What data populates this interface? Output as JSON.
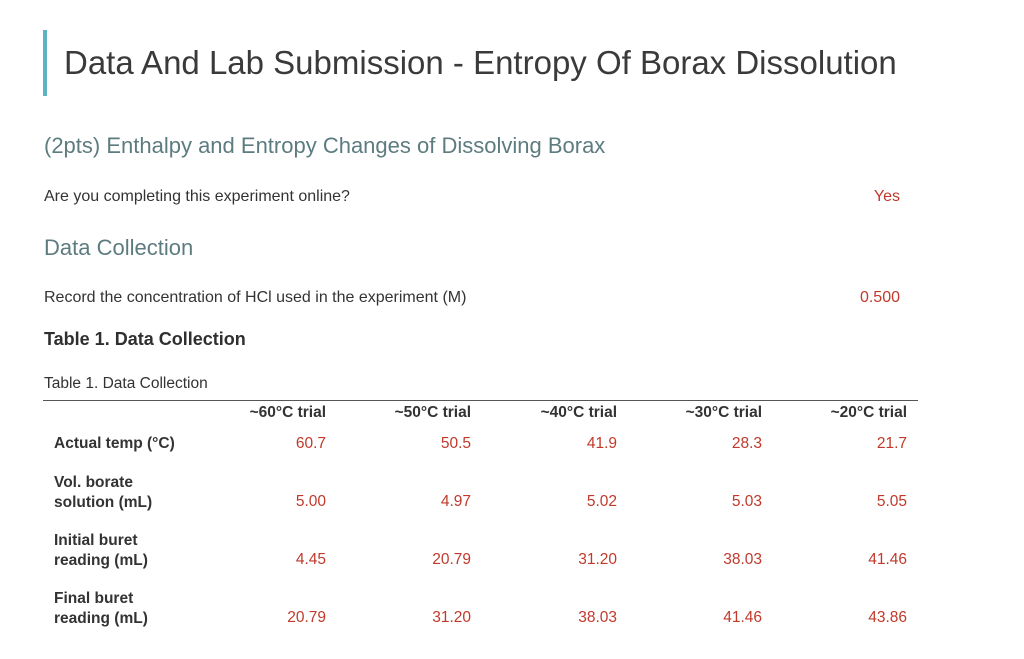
{
  "page": {
    "title": "Data And Lab Submission - Entropy Of Borax Dissolution"
  },
  "section1": {
    "heading": "(2pts) Enthalpy and Entropy Changes of Dissolving Borax",
    "question": "Are you completing this experiment online?",
    "answer": "Yes"
  },
  "section2": {
    "heading": "Data Collection",
    "question": "Record the concentration of HCl used in the experiment (M)",
    "answer": "0.500"
  },
  "table": {
    "heading": "Table 1. Data Collection",
    "caption": "Table 1. Data Collection",
    "columns": [
      "~60°C trial",
      "~50°C trial",
      "~40°C trial",
      "~30°C trial",
      "~20°C trial"
    ],
    "rows": [
      {
        "label": "Actual temp (°C)",
        "values": [
          "60.7",
          "50.5",
          "41.9",
          "28.3",
          "21.7"
        ]
      },
      {
        "label": "Vol. borate solution (mL)",
        "values": [
          "5.00",
          "4.97",
          "5.02",
          "5.03",
          "5.05"
        ]
      },
      {
        "label": "Initial buret reading (mL)",
        "values": [
          "4.45",
          "20.79",
          "31.20",
          "38.03",
          "41.46"
        ]
      },
      {
        "label": "Final buret reading (mL)",
        "values": [
          "20.79",
          "31.20",
          "38.03",
          "41.46",
          "43.86"
        ]
      }
    ]
  },
  "colors": {
    "accent_bar": "#5bb3c3",
    "section_heading": "#5d7c80",
    "answer": "#c0392b"
  }
}
